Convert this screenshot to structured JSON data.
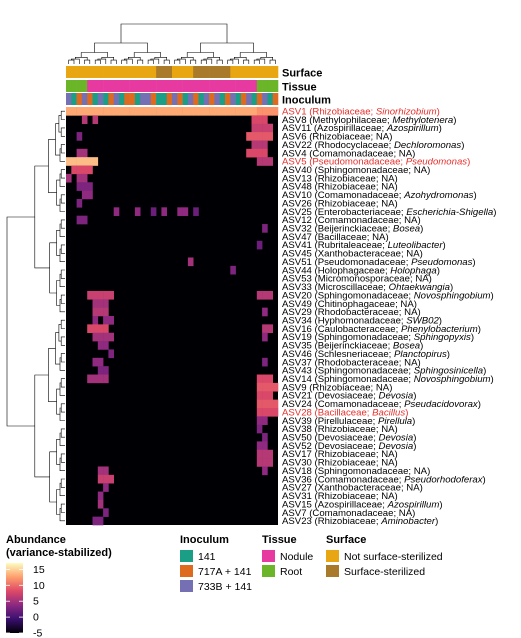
{
  "chart_data": {
    "type": "heatmap",
    "title": "",
    "annotation_tracks": [
      {
        "title": "Surface",
        "levels": [
          "Not surface-sterilized",
          "Surface-sterilized"
        ],
        "colors": [
          "#e8a612",
          "#a87a2a"
        ]
      },
      {
        "title": "Tissue",
        "levels": [
          "Nodule",
          "Root"
        ],
        "colors": [
          "#e63aa0",
          "#6ab528"
        ]
      },
      {
        "title": "Inoculum",
        "levels": [
          "141",
          "717A + 141",
          "733B + 141"
        ],
        "colors": [
          "#1a9e86",
          "#dd6a1e",
          "#7570b3"
        ]
      }
    ],
    "columns": 40,
    "column_annotations": {
      "surface": [
        0,
        0,
        0,
        0,
        0,
        0,
        0,
        0,
        0,
        0,
        0,
        0,
        0,
        0,
        0,
        0,
        0,
        1,
        1,
        1,
        0,
        0,
        0,
        0,
        1,
        1,
        1,
        1,
        1,
        1,
        1,
        0,
        0,
        0,
        0,
        0,
        0,
        0,
        0,
        0
      ],
      "tissue": [
        1,
        1,
        1,
        1,
        0,
        0,
        0,
        0,
        0,
        0,
        0,
        0,
        0,
        0,
        0,
        0,
        0,
        0,
        0,
        0,
        0,
        0,
        0,
        0,
        0,
        0,
        0,
        0,
        0,
        0,
        0,
        0,
        0,
        0,
        0,
        0,
        1,
        1,
        1,
        1
      ],
      "inoculum": [
        2,
        0,
        1,
        2,
        1,
        0,
        2,
        0,
        1,
        2,
        0,
        1,
        1,
        0,
        2,
        2,
        1,
        0,
        0,
        1,
        2,
        1,
        0,
        2,
        1,
        0,
        2,
        1,
        2,
        0,
        1,
        2,
        0,
        1,
        2,
        0,
        1,
        2,
        0,
        1
      ]
    },
    "rows": [
      {
        "asv": "ASV1",
        "family": "Rhizobiaceae",
        "genus": "Sinorhizobium",
        "highlight": true
      },
      {
        "asv": "ASV8",
        "family": "Methylophilaceae",
        "genus": "Methylotenera",
        "highlight": false
      },
      {
        "asv": "ASV11",
        "family": "Azospirillaceae",
        "genus": "Azospirillum",
        "highlight": false
      },
      {
        "asv": "ASV6",
        "family": "Rhizobiaceae",
        "genus": "NA",
        "highlight": false
      },
      {
        "asv": "ASV22",
        "family": "Rhodocyclaceae",
        "genus": "Dechloromonas",
        "highlight": false
      },
      {
        "asv": "ASV4",
        "family": "Comamonadaceae",
        "genus": "NA",
        "highlight": false
      },
      {
        "asv": "ASV5",
        "family": "Pseudomonadaceae",
        "genus": "Pseudomonas",
        "highlight": true
      },
      {
        "asv": "ASV40",
        "family": "Sphingomonadaceae",
        "genus": "NA",
        "highlight": false
      },
      {
        "asv": "ASV13",
        "family": "Rhizobiaceae",
        "genus": "NA",
        "highlight": false
      },
      {
        "asv": "ASV48",
        "family": "Rhizobiaceae",
        "genus": "NA",
        "highlight": false
      },
      {
        "asv": "ASV10",
        "family": "Comamonadaceae",
        "genus": "Azohydromonas",
        "highlight": false
      },
      {
        "asv": "ASV26",
        "family": "Rhizobiaceae",
        "genus": "NA",
        "highlight": false
      },
      {
        "asv": "ASV25",
        "family": "Enterobacteriaceae",
        "genus": "Escherichia-Shigella",
        "highlight": false
      },
      {
        "asv": "ASV12",
        "family": "Comamonadaceae",
        "genus": "NA",
        "highlight": false
      },
      {
        "asv": "ASV32",
        "family": "Beijerinckiaceae",
        "genus": "Bosea",
        "highlight": false
      },
      {
        "asv": "ASV47",
        "family": "Bacillaceae",
        "genus": "NA",
        "highlight": false
      },
      {
        "asv": "ASV41",
        "family": "Rubritaleaceae",
        "genus": "Luteolibacter",
        "highlight": false
      },
      {
        "asv": "ASV45",
        "family": "Xanthobacteraceae",
        "genus": "NA",
        "highlight": false
      },
      {
        "asv": "ASV51",
        "family": "Pseudomonadaceae",
        "genus": "Pseudomonas",
        "highlight": false
      },
      {
        "asv": "ASV44",
        "family": "Holophagaceae",
        "genus": "Holophaga",
        "highlight": false
      },
      {
        "asv": "ASV53",
        "family": "Micromonosporaceae",
        "genus": "NA",
        "highlight": false
      },
      {
        "asv": "ASV33",
        "family": "Microscillaceae",
        "genus": "Ohtaekwangia",
        "highlight": false
      },
      {
        "asv": "ASV20",
        "family": "Sphingomonadaceae",
        "genus": "Novosphingobium",
        "highlight": false
      },
      {
        "asv": "ASV49",
        "family": "Chitinophagaceae",
        "genus": "NA",
        "highlight": false
      },
      {
        "asv": "ASV29",
        "family": "Rhodobacteraceae",
        "genus": "NA",
        "highlight": false
      },
      {
        "asv": "ASV34",
        "family": "Hyphomonadaceae",
        "genus": "SWB02",
        "highlight": false
      },
      {
        "asv": "ASV16",
        "family": "Caulobacteraceae",
        "genus": "Phenylobacterium",
        "highlight": false
      },
      {
        "asv": "ASV19",
        "family": "Sphingomonadaceae",
        "genus": "Sphingopyxis",
        "highlight": false
      },
      {
        "asv": "ASV35",
        "family": "Beijerinckiaceae",
        "genus": "Bosea",
        "highlight": false
      },
      {
        "asv": "ASV46",
        "family": "Schlesneriaceae",
        "genus": "Planctopirus",
        "highlight": false
      },
      {
        "asv": "ASV37",
        "family": "Rhodobacteraceae",
        "genus": "NA",
        "highlight": false
      },
      {
        "asv": "ASV43",
        "family": "Sphingomonadaceae",
        "genus": "Sphingosinicella",
        "highlight": false
      },
      {
        "asv": "ASV14",
        "family": "Sphingomonadaceae",
        "genus": "Novosphingobium",
        "highlight": false
      },
      {
        "asv": "ASV9",
        "family": "Rhizobiaceae",
        "genus": "NA",
        "highlight": false
      },
      {
        "asv": "ASV21",
        "family": "Devosiaceae",
        "genus": "Devosia",
        "highlight": false
      },
      {
        "asv": "ASV24",
        "family": "Comamonadaceae",
        "genus": "Pseudacidovorax",
        "highlight": false
      },
      {
        "asv": "ASV28",
        "family": "Bacillaceae",
        "genus": "Bacillus",
        "highlight": true
      },
      {
        "asv": "ASV39",
        "family": "Pirellulaceae",
        "genus": "Pirellula",
        "highlight": false
      },
      {
        "asv": "ASV38",
        "family": "Rhizobiaceae",
        "genus": "NA",
        "highlight": false
      },
      {
        "asv": "ASV50",
        "family": "Devosiaceae",
        "genus": "Devosia",
        "highlight": false
      },
      {
        "asv": "ASV52",
        "family": "Devosiaceae",
        "genus": "Devosia",
        "highlight": false
      },
      {
        "asv": "ASV17",
        "family": "Rhizobiaceae",
        "genus": "NA",
        "highlight": false
      },
      {
        "asv": "ASV30",
        "family": "Rhizobiaceae",
        "genus": "NA",
        "highlight": false
      },
      {
        "asv": "ASV18",
        "family": "Sphingomonadaceae",
        "genus": "NA",
        "highlight": false
      },
      {
        "asv": "ASV36",
        "family": "Comamonadaceae",
        "genus": "Pseudorhodoferax",
        "highlight": false
      },
      {
        "asv": "ASV27",
        "family": "Xanthobacteraceae",
        "genus": "NA",
        "highlight": false
      },
      {
        "asv": "ASV31",
        "family": "Rhizobiaceae",
        "genus": "NA",
        "highlight": false
      },
      {
        "asv": "ASV15",
        "family": "Azospirillaceae",
        "genus": "Azospirillum",
        "highlight": false
      },
      {
        "asv": "ASV7",
        "family": "Comamonadaceae",
        "genus": "NA",
        "highlight": false
      },
      {
        "asv": "ASV23",
        "family": "Rhizobiaceae",
        "genus": "Aminobacter",
        "highlight": false
      }
    ],
    "highlight_color": "#e8302c",
    "value_scale": {
      "title_line1": "Abundance",
      "title_line2": "(variance-stabilized)",
      "ticks": [
        15,
        10,
        5,
        0,
        -5
      ],
      "range": [
        -5,
        17
      ],
      "colors": [
        "#000004",
        "#3b0f70",
        "#8c2981",
        "#de4968",
        "#fe9f6d",
        "#fcfdbf"
      ]
    },
    "background_value": -5,
    "cells": [
      {
        "r": 0,
        "cols": [
          0,
          1,
          2,
          3,
          4,
          5,
          6,
          7,
          8,
          9,
          10,
          11,
          12,
          13,
          14,
          15,
          16,
          17,
          18,
          19,
          20,
          21,
          22,
          23,
          24,
          25,
          26,
          27,
          28,
          29,
          30,
          31,
          32,
          33,
          34,
          35
        ],
        "v": 13
      },
      {
        "r": 0,
        "cols": [
          36,
          37,
          38,
          39
        ],
        "v": 12
      },
      {
        "r": 1,
        "cols": [
          3,
          5
        ],
        "v": 6
      },
      {
        "r": 1,
        "cols": [
          35,
          36,
          37
        ],
        "v": 8
      },
      {
        "r": 2,
        "cols": [
          35,
          36,
          37,
          38
        ],
        "v": 7
      },
      {
        "r": 3,
        "cols": [
          34,
          35,
          36,
          37,
          38
        ],
        "v": 9
      },
      {
        "r": 3,
        "cols": [
          2
        ],
        "v": 3
      },
      {
        "r": 4,
        "cols": [
          35,
          36,
          37
        ],
        "v": 6
      },
      {
        "r": 5,
        "cols": [
          2,
          3
        ],
        "v": 5
      },
      {
        "r": 5,
        "cols": [
          34,
          35,
          36,
          37
        ],
        "v": 8
      },
      {
        "r": 6,
        "cols": [
          0,
          1,
          2,
          3,
          4,
          5
        ],
        "v": 14
      },
      {
        "r": 6,
        "cols": [
          36,
          37,
          38
        ],
        "v": 6
      },
      {
        "r": 7,
        "cols": [
          1,
          2,
          3,
          4
        ],
        "v": 8
      },
      {
        "r": 8,
        "cols": [
          0,
          2,
          3
        ],
        "v": 5
      },
      {
        "r": 9,
        "cols": [
          2,
          3,
          4
        ],
        "v": 3
      },
      {
        "r": 10,
        "cols": [
          3,
          4
        ],
        "v": 4
      },
      {
        "r": 11,
        "cols": [
          2
        ],
        "v": 3
      },
      {
        "r": 12,
        "cols": [
          9,
          13,
          18,
          21,
          22
        ],
        "v": 4
      },
      {
        "r": 12,
        "cols": [
          16,
          24
        ],
        "v": 2
      },
      {
        "r": 13,
        "cols": [
          2,
          3
        ],
        "v": 3
      },
      {
        "r": 14,
        "cols": [
          37
        ],
        "v": 3
      },
      {
        "r": 16,
        "cols": [
          36
        ],
        "v": 2
      },
      {
        "r": 18,
        "cols": [
          23
        ],
        "v": 5
      },
      {
        "r": 19,
        "cols": [
          31
        ],
        "v": 3
      },
      {
        "r": 22,
        "cols": [
          4,
          5,
          6,
          7,
          8
        ],
        "v": 7
      },
      {
        "r": 22,
        "cols": [
          36,
          37,
          38
        ],
        "v": 6
      },
      {
        "r": 23,
        "cols": [
          5,
          6,
          7
        ],
        "v": 5
      },
      {
        "r": 24,
        "cols": [
          5,
          6,
          7
        ],
        "v": 6
      },
      {
        "r": 24,
        "cols": [
          37
        ],
        "v": 4
      },
      {
        "r": 25,
        "cols": [
          5,
          7,
          8
        ],
        "v": 4
      },
      {
        "r": 26,
        "cols": [
          4,
          5,
          6,
          7
        ],
        "v": 8
      },
      {
        "r": 26,
        "cols": [
          37,
          38
        ],
        "v": 6
      },
      {
        "r": 27,
        "cols": [
          5,
          6,
          7,
          8
        ],
        "v": 5
      },
      {
        "r": 27,
        "cols": [
          37
        ],
        "v": 4
      },
      {
        "r": 28,
        "cols": [
          6,
          7
        ],
        "v": 4
      },
      {
        "r": 29,
        "cols": [
          8
        ],
        "v": 3
      },
      {
        "r": 30,
        "cols": [
          5,
          6
        ],
        "v": 4
      },
      {
        "r": 30,
        "cols": [
          37
        ],
        "v": 3
      },
      {
        "r": 31,
        "cols": [
          6,
          7
        ],
        "v": 3
      },
      {
        "r": 32,
        "cols": [
          4,
          5,
          6,
          7
        ],
        "v": 5
      },
      {
        "r": 32,
        "cols": [
          36,
          37,
          38
        ],
        "v": 8
      },
      {
        "r": 33,
        "cols": [
          36,
          37,
          38,
          39
        ],
        "v": 9
      },
      {
        "r": 34,
        "cols": [
          36,
          37,
          38
        ],
        "v": 8
      },
      {
        "r": 35,
        "cols": [
          36,
          37,
          38,
          39
        ],
        "v": 9
      },
      {
        "r": 36,
        "cols": [
          36,
          37,
          38,
          39
        ],
        "v": 8
      },
      {
        "r": 37,
        "cols": [
          36,
          37
        ],
        "v": 4
      },
      {
        "r": 38,
        "cols": [
          36
        ],
        "v": 3
      },
      {
        "r": 39,
        "cols": [
          37
        ],
        "v": 3
      },
      {
        "r": 40,
        "cols": [
          36,
          37
        ],
        "v": 4
      },
      {
        "r": 41,
        "cols": [
          36,
          37,
          38
        ],
        "v": 6
      },
      {
        "r": 42,
        "cols": [
          36,
          37,
          38
        ],
        "v": 6
      },
      {
        "r": 43,
        "cols": [
          6,
          7
        ],
        "v": 5
      },
      {
        "r": 43,
        "cols": [
          37
        ],
        "v": 4
      },
      {
        "r": 44,
        "cols": [
          6,
          7,
          8
        ],
        "v": 7
      },
      {
        "r": 45,
        "cols": [
          7
        ],
        "v": 4
      },
      {
        "r": 46,
        "cols": [
          6
        ],
        "v": 4
      },
      {
        "r": 47,
        "cols": [
          6
        ],
        "v": 5
      },
      {
        "r": 48,
        "cols": [
          7
        ],
        "v": 3
      },
      {
        "r": 49,
        "cols": [
          5,
          6
        ],
        "v": 3
      }
    ]
  }
}
